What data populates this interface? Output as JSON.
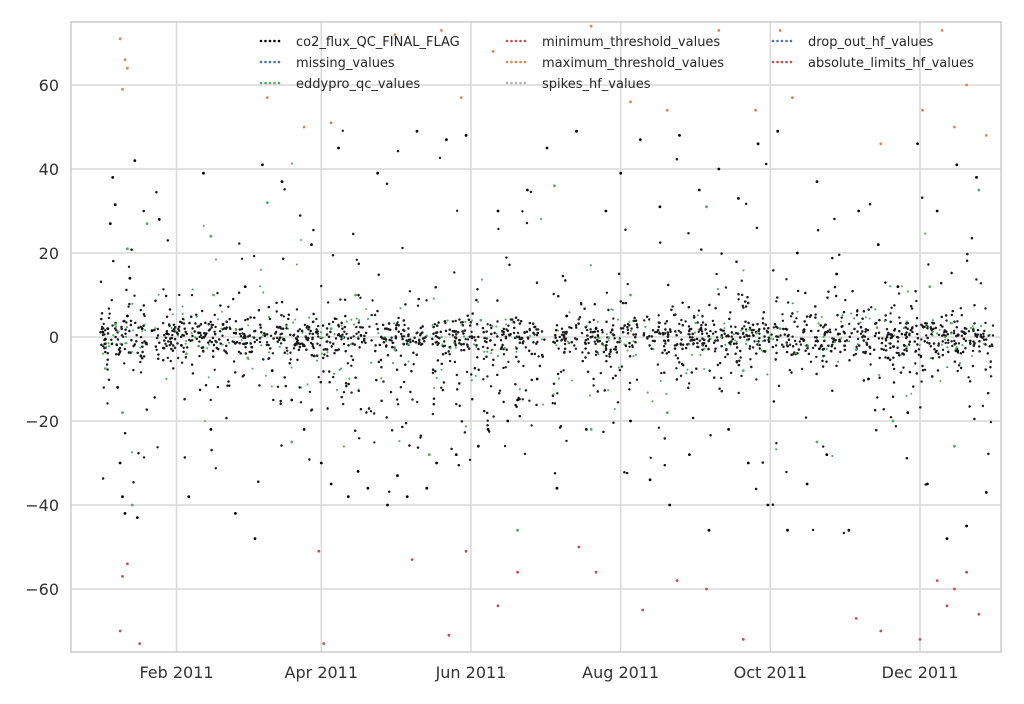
{
  "chart_data": {
    "type": "scatter",
    "title": "",
    "xlabel": "",
    "ylabel": "",
    "xlim": [
      "2010-12-20",
      "2012-01-03"
    ],
    "ylim": [
      -75,
      75
    ],
    "grid": true,
    "legend_position": "top",
    "x_ticks": [
      "2011-02-01",
      "2011-04-01",
      "2011-06-01",
      "2011-08-01",
      "2011-10-01",
      "2011-12-01"
    ],
    "x_tick_labels": [
      "Feb 2011",
      "Apr 2011",
      "Jun 2011",
      "Aug 2011",
      "Oct 2011",
      "Dec 2011"
    ],
    "y_ticks": [
      60,
      40,
      20,
      0,
      -20,
      -40,
      -60
    ],
    "y_tick_labels": [
      "60",
      "40",
      "20",
      "0",
      "−20",
      "−40",
      "−60"
    ],
    "series": [
      {
        "name": "co2_flux_QC_FINAL_FLAG",
        "color": "#000000",
        "points": [
          [
            "2011-01-02",
            1.2
          ],
          [
            "2011-01-03",
            -0.5
          ],
          [
            "2011-01-04",
            2.0
          ],
          [
            "2011-01-05",
            27.0
          ],
          [
            "2011-01-06",
            38.0
          ],
          [
            "2011-01-07",
            31.5
          ],
          [
            "2011-01-08",
            -12.0
          ],
          [
            "2011-01-09",
            -30.0
          ],
          [
            "2011-01-10",
            -38.0
          ],
          [
            "2011-01-11",
            -42.0
          ],
          [
            "2011-01-12",
            5.0
          ],
          [
            "2011-01-13",
            14.0
          ],
          [
            "2011-01-15",
            42.0
          ],
          [
            "2011-01-16",
            -43.0
          ],
          [
            "2011-01-18",
            2.0
          ],
          [
            "2011-01-22",
            1.5
          ],
          [
            "2011-01-25",
            28.0
          ],
          [
            "2011-01-28",
            0.8
          ],
          [
            "2011-02-03",
            -2.0
          ],
          [
            "2011-02-06",
            -38.0
          ],
          [
            "2011-02-10",
            1.0
          ],
          [
            "2011-02-12",
            39.0
          ],
          [
            "2011-02-15",
            -22.0
          ],
          [
            "2011-02-20",
            3.0
          ],
          [
            "2011-02-25",
            -42.0
          ],
          [
            "2011-03-01",
            12.0
          ],
          [
            "2011-03-05",
            -48.0
          ],
          [
            "2011-03-08",
            41.0
          ],
          [
            "2011-03-12",
            -8.0
          ],
          [
            "2011-03-16",
            37.0
          ],
          [
            "2011-03-20",
            -15.0
          ],
          [
            "2011-03-25",
            -22.0
          ],
          [
            "2011-03-28",
            22.0
          ],
          [
            "2011-04-01",
            -30.0
          ],
          [
            "2011-04-05",
            -35.0
          ],
          [
            "2011-04-08",
            45.0
          ],
          [
            "2011-04-12",
            -38.0
          ],
          [
            "2011-04-16",
            -32.0
          ],
          [
            "2011-04-20",
            -36.0
          ],
          [
            "2011-04-24",
            39.0
          ],
          [
            "2011-04-28",
            -40.0
          ],
          [
            "2011-05-02",
            -33.0
          ],
          [
            "2011-05-06",
            -38.0
          ],
          [
            "2011-05-10",
            49.0
          ],
          [
            "2011-05-14",
            -36.0
          ],
          [
            "2011-05-18",
            -30.0
          ],
          [
            "2011-05-22",
            47.0
          ],
          [
            "2011-05-26",
            -28.0
          ],
          [
            "2011-05-30",
            48.0
          ],
          [
            "2011-06-04",
            -26.0
          ],
          [
            "2011-06-08",
            -22.0
          ],
          [
            "2011-06-12",
            30.0
          ],
          [
            "2011-06-16",
            -20.0
          ],
          [
            "2011-06-20",
            -15.0
          ],
          [
            "2011-06-24",
            35.0
          ],
          [
            "2011-06-28",
            -10.0
          ],
          [
            "2011-07-02",
            45.0
          ],
          [
            "2011-07-06",
            -36.0
          ],
          [
            "2011-07-10",
            5.0
          ],
          [
            "2011-07-14",
            49.0
          ],
          [
            "2011-07-18",
            -22.0
          ],
          [
            "2011-07-22",
            2.0
          ],
          [
            "2011-07-26",
            30.0
          ],
          [
            "2011-08-01",
            39.0
          ],
          [
            "2011-08-05",
            -20.0
          ],
          [
            "2011-08-09",
            47.0
          ],
          [
            "2011-08-13",
            -34.0
          ],
          [
            "2011-08-17",
            31.0
          ],
          [
            "2011-08-21",
            -40.0
          ],
          [
            "2011-08-25",
            48.0
          ],
          [
            "2011-08-29",
            -28.0
          ],
          [
            "2011-09-02",
            35.0
          ],
          [
            "2011-09-06",
            -46.0
          ],
          [
            "2011-09-10",
            40.0
          ],
          [
            "2011-09-14",
            -22.0
          ],
          [
            "2011-09-18",
            33.0
          ],
          [
            "2011-09-22",
            -30.0
          ],
          [
            "2011-09-26",
            46.0
          ],
          [
            "2011-09-30",
            -40.0
          ],
          [
            "2011-10-04",
            49.0
          ],
          [
            "2011-10-08",
            -46.0
          ],
          [
            "2011-10-12",
            20.0
          ],
          [
            "2011-10-16",
            -35.0
          ],
          [
            "2011-10-20",
            37.0
          ],
          [
            "2011-10-24",
            -28.0
          ],
          [
            "2011-10-28",
            15.0
          ],
          [
            "2011-11-02",
            -46.0
          ],
          [
            "2011-11-06",
            30.0
          ],
          [
            "2011-11-10",
            -10.0
          ],
          [
            "2011-11-14",
            22.0
          ],
          [
            "2011-11-18",
            -5.0
          ],
          [
            "2011-11-22",
            12.0
          ],
          [
            "2011-11-26",
            -18.0
          ],
          [
            "2011-11-30",
            46.0
          ],
          [
            "2011-12-04",
            -35.0
          ],
          [
            "2011-12-08",
            30.0
          ],
          [
            "2011-12-12",
            -48.0
          ],
          [
            "2011-12-16",
            41.0
          ],
          [
            "2011-12-20",
            -45.0
          ],
          [
            "2011-12-24",
            38.0
          ],
          [
            "2011-12-28",
            -37.0
          ]
        ]
      },
      {
        "name": "missing_values",
        "color": "#4c72b0",
        "points": []
      },
      {
        "name": "eddypro_qc_values",
        "color": "#55a868",
        "points": [
          [
            "2011-01-03",
            -7.5
          ],
          [
            "2011-01-07",
            3.0
          ],
          [
            "2011-01-10",
            -18.0
          ],
          [
            "2011-01-12",
            21.0
          ],
          [
            "2011-01-14",
            -40.0
          ],
          [
            "2011-01-20",
            27.0
          ],
          [
            "2011-02-05",
            -4.0
          ],
          [
            "2011-02-15",
            24.0
          ],
          [
            "2011-03-02",
            -5.0
          ],
          [
            "2011-03-10",
            32.0
          ],
          [
            "2011-03-20",
            -25.0
          ],
          [
            "2011-04-05",
            2.0
          ],
          [
            "2011-04-15",
            10.0
          ],
          [
            "2011-05-01",
            -3.0
          ],
          [
            "2011-05-15",
            -28.0
          ],
          [
            "2011-06-05",
            4.0
          ],
          [
            "2011-06-20",
            -46.0
          ],
          [
            "2011-07-05",
            36.0
          ],
          [
            "2011-07-20",
            -22.0
          ],
          [
            "2011-08-05",
            10.0
          ],
          [
            "2011-08-20",
            -18.0
          ],
          [
            "2011-09-05",
            31.0
          ],
          [
            "2011-09-20",
            -8.0
          ],
          [
            "2011-10-05",
            2.0
          ],
          [
            "2011-10-20",
            -25.0
          ],
          [
            "2011-11-05",
            -3.0
          ],
          [
            "2011-11-20",
            -20.0
          ],
          [
            "2011-12-05",
            12.0
          ],
          [
            "2011-12-15",
            -26.0
          ],
          [
            "2011-12-25",
            35.0
          ]
        ]
      },
      {
        "name": "minimum_threshold_values",
        "color": "#c44e52",
        "points": [
          [
            "2011-01-09",
            -70.0
          ],
          [
            "2011-01-10",
            -57.0
          ],
          [
            "2011-01-12",
            -54.0
          ],
          [
            "2011-01-17",
            -73.0
          ],
          [
            "2011-03-31",
            -51.0
          ],
          [
            "2011-04-02",
            -73.0
          ],
          [
            "2011-05-08",
            -53.0
          ],
          [
            "2011-05-23",
            -71.0
          ],
          [
            "2011-05-30",
            -51.0
          ],
          [
            "2011-06-12",
            -64.0
          ],
          [
            "2011-06-20",
            -56.0
          ],
          [
            "2011-07-15",
            -50.0
          ],
          [
            "2011-07-22",
            -56.0
          ],
          [
            "2011-08-10",
            -65.0
          ],
          [
            "2011-08-24",
            -58.0
          ],
          [
            "2011-09-05",
            -60.0
          ],
          [
            "2011-09-20",
            -72.0
          ],
          [
            "2011-11-05",
            -67.0
          ],
          [
            "2011-11-15",
            -70.0
          ],
          [
            "2011-12-01",
            -72.0
          ],
          [
            "2011-12-08",
            -58.0
          ],
          [
            "2011-12-12",
            -64.0
          ],
          [
            "2011-12-15",
            -60.0
          ],
          [
            "2011-12-20",
            -56.0
          ],
          [
            "2011-12-25",
            -66.0
          ]
        ]
      },
      {
        "name": "maximum_threshold_values",
        "color": "#dd8452",
        "points": [
          [
            "2011-01-09",
            71.0
          ],
          [
            "2011-01-10",
            59.0
          ],
          [
            "2011-01-11",
            66.0
          ],
          [
            "2011-01-12",
            64.0
          ],
          [
            "2011-03-10",
            57.0
          ],
          [
            "2011-03-25",
            50.0
          ],
          [
            "2011-04-05",
            51.0
          ],
          [
            "2011-05-01",
            72.0
          ],
          [
            "2011-05-20",
            73.0
          ],
          [
            "2011-05-28",
            57.0
          ],
          [
            "2011-06-10",
            68.0
          ],
          [
            "2011-07-20",
            74.0
          ],
          [
            "2011-08-05",
            56.0
          ],
          [
            "2011-08-20",
            54.0
          ],
          [
            "2011-09-10",
            73.0
          ],
          [
            "2011-09-25",
            54.0
          ],
          [
            "2011-10-05",
            73.0
          ],
          [
            "2011-10-10",
            57.0
          ],
          [
            "2011-11-15",
            46.0
          ],
          [
            "2011-12-02",
            54.0
          ],
          [
            "2011-12-10",
            73.0
          ],
          [
            "2011-12-15",
            50.0
          ],
          [
            "2011-12-20",
            60.0
          ],
          [
            "2011-12-28",
            48.0
          ]
        ]
      },
      {
        "name": "spikes_hf_values",
        "color": "#b0b0b0",
        "points": []
      },
      {
        "name": "drop_out_hf_values",
        "color": "#4c72b0",
        "points": []
      },
      {
        "name": "absolute_limits_hf_values",
        "color": "#c44e52",
        "points": []
      }
    ]
  }
}
